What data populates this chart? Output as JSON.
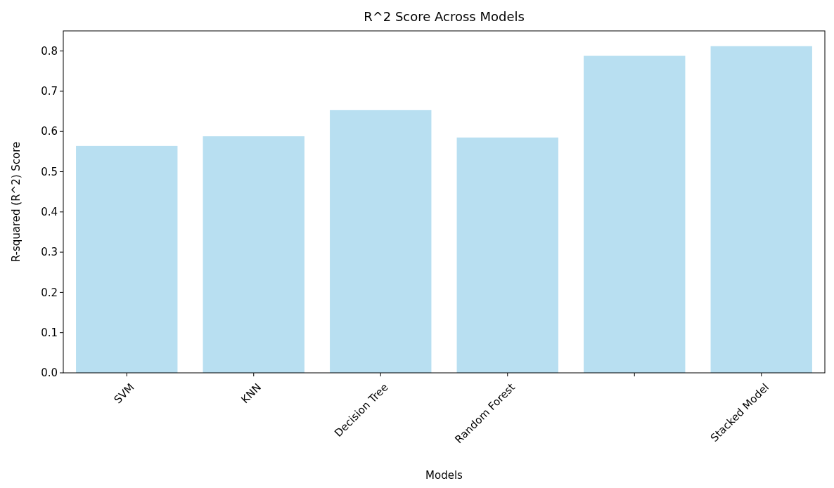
{
  "chart_data": {
    "type": "bar",
    "title": "R^2 Score Across Models",
    "xlabel": "Models",
    "ylabel": "R-squared (R^2) Score",
    "categories": [
      "SVM",
      "KNN",
      "Decision Tree",
      "Random Forest",
      null,
      "Stacked Model"
    ],
    "values": [
      0.564,
      0.588,
      0.653,
      0.585,
      0.788,
      0.812
    ],
    "color": "#b8dff1",
    "ylim": [
      0,
      0.85
    ],
    "yticks": [
      {
        "value": 0,
        "label": "0.0"
      },
      0.1,
      0.2,
      0.3,
      0.4,
      0.5,
      0.6,
      0.7,
      0.8
    ],
    "grid": false
  }
}
